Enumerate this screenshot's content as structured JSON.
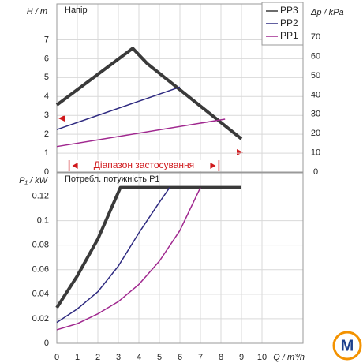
{
  "chart_data": [
    {
      "type": "line",
      "title": "Напір",
      "ylabel": "H / m",
      "y2label": "Δp / kPa",
      "xlim": [
        0,
        12
      ],
      "xticks": [
        0,
        1,
        2,
        3,
        4,
        5,
        6,
        7,
        8,
        9,
        10
      ],
      "ylim": [
        0,
        8.9
      ],
      "yticks": [
        0,
        1,
        2,
        3,
        4,
        5,
        6,
        7
      ],
      "y2lim": [
        0,
        87.3
      ],
      "y2ticks": [
        0,
        10,
        20,
        30,
        40,
        50,
        60,
        70
      ],
      "grid": true,
      "legend": "upper right",
      "annotation": "Діапазон застосування",
      "series": [
        {
          "name": "PP3",
          "color": "#3a3a3a",
          "width": 4,
          "x": [
            0,
            3.7,
            4.4,
            9
          ],
          "values": [
            3.55,
            6.55,
            5.75,
            1.75
          ]
        },
        {
          "name": "PP2",
          "color": "#2e2a80",
          "width": 1.5,
          "x": [
            0,
            6
          ],
          "values": [
            2.25,
            4.5
          ]
        },
        {
          "name": "PP1",
          "color": "#a0288f",
          "width": 1.5,
          "x": [
            0,
            8.2
          ],
          "values": [
            1.35,
            2.8
          ]
        }
      ]
    },
    {
      "type": "line",
      "title": "Потребл. потужність P1",
      "ylabel": "P₁ / kW",
      "xlabel": "Q / m³/h",
      "xlim": [
        0,
        12
      ],
      "xticks": [
        0,
        1,
        2,
        3,
        4,
        5,
        6,
        7,
        8,
        9,
        10
      ],
      "ylim": [
        0,
        0.139
      ],
      "yticks": [
        0,
        0.02,
        0.04,
        0.06,
        0.08,
        0.1,
        0.12
      ],
      "grid": true,
      "series": [
        {
          "color": "#3a3a3a",
          "width": 4,
          "x": [
            0,
            1,
            2,
            3.1,
            9
          ],
          "values": [
            0.029,
            0.055,
            0.085,
            0.127,
            0.127
          ]
        },
        {
          "color": "#2e2a80",
          "width": 1.5,
          "x": [
            0,
            1,
            2,
            3,
            4,
            5,
            5.5
          ],
          "values": [
            0.017,
            0.028,
            0.042,
            0.063,
            0.09,
            0.115,
            0.127
          ]
        },
        {
          "color": "#a0288f",
          "width": 1.5,
          "x": [
            0,
            1,
            2,
            3,
            4,
            5,
            6,
            7
          ],
          "values": [
            0.011,
            0.016,
            0.024,
            0.034,
            0.048,
            0.067,
            0.092,
            0.127
          ]
        }
      ]
    }
  ],
  "logo": "M"
}
